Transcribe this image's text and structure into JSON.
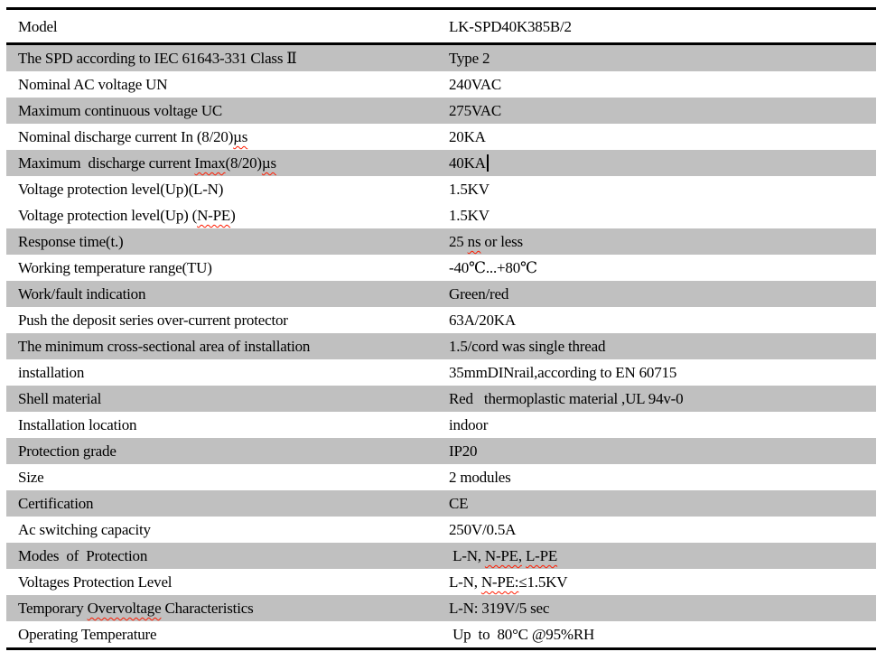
{
  "colors": {
    "shaded_row": "#c0c0c0",
    "table_border": "#000000",
    "spellcheck_underline": "#ff1a00",
    "text": "#000000",
    "background": "#ffffff"
  },
  "table": {
    "header": {
      "label": "Model",
      "value": "LK-SPD40K385B/2"
    },
    "rows": [
      {
        "shaded": true,
        "label": [
          {
            "text": "The SPD according to IEC 61643-331 Class Ⅱ"
          }
        ],
        "value": [
          {
            "text": "Type 2"
          }
        ]
      },
      {
        "shaded": false,
        "label": [
          {
            "text": "Nominal AC voltage UN"
          }
        ],
        "value": [
          {
            "text": "240VAC"
          }
        ]
      },
      {
        "shaded": true,
        "label": [
          {
            "text": "Maximum continuous voltage UC"
          }
        ],
        "value": [
          {
            "text": "275VAC"
          }
        ]
      },
      {
        "shaded": false,
        "label": [
          {
            "text": "Nominal discharge current In (8/20)"
          },
          {
            "text": "µs",
            "misspelled": true
          }
        ],
        "value": [
          {
            "text": "20KA"
          }
        ]
      },
      {
        "shaded": true,
        "label": [
          {
            "text": "Maximum  discharge current "
          },
          {
            "text": "Imax",
            "misspelled": true
          },
          {
            "text": "(8/20)"
          },
          {
            "text": "µs",
            "misspelled": true
          }
        ],
        "value": [
          {
            "text": "40KA"
          }
        ],
        "caret_after_value": true
      },
      {
        "shaded": false,
        "label": [
          {
            "text": "Voltage protection level(Up)(L-N)"
          }
        ],
        "value": [
          {
            "text": "1.5KV"
          }
        ]
      },
      {
        "shaded": false,
        "label": [
          {
            "text": "Voltage protection level(Up) ("
          },
          {
            "text": "N-PE",
            "misspelled": true
          },
          {
            "text": ")"
          }
        ],
        "value": [
          {
            "text": "1.5KV"
          }
        ]
      },
      {
        "shaded": true,
        "label": [
          {
            "text": "Response time(t.)"
          }
        ],
        "value": [
          {
            "text": "25 "
          },
          {
            "text": "ns",
            "misspelled": true
          },
          {
            "text": " or less"
          }
        ]
      },
      {
        "shaded": false,
        "label": [
          {
            "text": "Working temperature range(TU)"
          }
        ],
        "value": [
          {
            "text": "-40℃...+80℃"
          }
        ]
      },
      {
        "shaded": true,
        "label": [
          {
            "text": "Work/fault indication"
          }
        ],
        "value": [
          {
            "text": "Green/red"
          }
        ]
      },
      {
        "shaded": false,
        "label": [
          {
            "text": "Push the deposit series over-current protector"
          }
        ],
        "value": [
          {
            "text": "63A/20KA"
          }
        ]
      },
      {
        "shaded": true,
        "label": [
          {
            "text": "The minimum cross-sectional area of installation"
          }
        ],
        "value": [
          {
            "text": "1.5/cord was single thread"
          }
        ]
      },
      {
        "shaded": false,
        "label": [
          {
            "text": "installation"
          }
        ],
        "value": [
          {
            "text": "35mmDINrail,according to EN 60715"
          }
        ]
      },
      {
        "shaded": true,
        "label": [
          {
            "text": "Shell material"
          }
        ],
        "value": [
          {
            "text": "Red   thermoplastic material ,UL 94v-0"
          }
        ]
      },
      {
        "shaded": false,
        "label": [
          {
            "text": "Installation location"
          }
        ],
        "value": [
          {
            "text": "indoor"
          }
        ]
      },
      {
        "shaded": true,
        "label": [
          {
            "text": "Protection grade"
          }
        ],
        "value": [
          {
            "text": "IP20"
          }
        ]
      },
      {
        "shaded": false,
        "label": [
          {
            "text": "Size"
          }
        ],
        "value": [
          {
            "text": "2 modules"
          }
        ]
      },
      {
        "shaded": true,
        "label": [
          {
            "text": "Certification"
          }
        ],
        "value": [
          {
            "text": "CE"
          }
        ]
      },
      {
        "shaded": false,
        "label": [
          {
            "text": "Ac switching capacity"
          }
        ],
        "value": [
          {
            "text": "250V/0.5A"
          }
        ]
      },
      {
        "shaded": true,
        "label": [
          {
            "text": "Modes  of  Protection"
          }
        ],
        "value": [
          {
            "text": " L-N, "
          },
          {
            "text": "N-PE,",
            "misspelled": true
          },
          {
            "text": " "
          },
          {
            "text": "L-PE",
            "misspelled": true
          }
        ]
      },
      {
        "shaded": false,
        "label": [
          {
            "text": "Voltages Protection Level"
          }
        ],
        "value": [
          {
            "text": "L-N, "
          },
          {
            "text": "N-PE:",
            "misspelled": true
          },
          {
            "text": "≤1.5KV"
          }
        ]
      },
      {
        "shaded": true,
        "label": [
          {
            "text": "Temporary "
          },
          {
            "text": "Overvoltage",
            "misspelled": true
          },
          {
            "text": " Characteristics"
          }
        ],
        "value": [
          {
            "text": "L-N: 319V/5 sec"
          }
        ]
      },
      {
        "shaded": false,
        "label": [
          {
            "text": "Operating Temperature"
          }
        ],
        "value": [
          {
            "text": " Up  to  80°C @95%RH"
          }
        ]
      }
    ]
  }
}
